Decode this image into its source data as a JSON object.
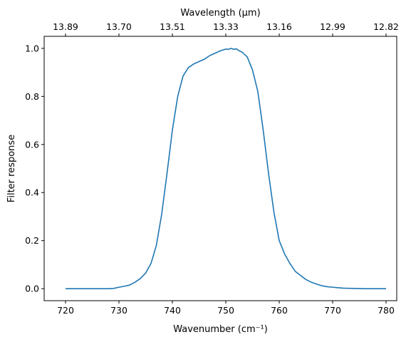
{
  "chart_data": {
    "type": "line",
    "xlabel": "Wavenumber (cm⁻¹)",
    "ylabel": "Filter response",
    "top_xlabel": "Wavelength (μm)",
    "xlim": [
      716,
      782
    ],
    "ylim": [
      -0.05,
      1.05
    ],
    "x_ticks": [
      720,
      730,
      740,
      750,
      760,
      770,
      780
    ],
    "x_tick_labels": [
      "720",
      "730",
      "740",
      "750",
      "760",
      "770",
      "780"
    ],
    "y_ticks": [
      0.0,
      0.2,
      0.4,
      0.6,
      0.8,
      1.0
    ],
    "y_tick_labels": [
      "0.0",
      "0.2",
      "0.4",
      "0.6",
      "0.8",
      "1.0"
    ],
    "top_ticks": [
      720,
      730,
      740,
      750,
      760,
      770,
      780
    ],
    "top_tick_labels": [
      "13.89",
      "13.70",
      "13.51",
      "13.33",
      "13.16",
      "12.99",
      "12.82"
    ],
    "grid": false,
    "line_color": "#1f77b4",
    "series": [
      {
        "x": [
          720,
          722,
          724,
          726,
          728,
          729,
          730,
          731,
          732,
          733,
          734,
          735,
          736,
          737,
          738,
          739,
          740,
          741,
          742,
          743,
          744,
          745,
          746,
          747,
          748,
          749,
          750,
          750.5,
          751,
          751.5,
          752,
          752.5,
          753,
          754,
          755,
          756,
          757,
          758,
          759,
          760,
          761,
          762,
          763,
          764,
          765,
          766,
          767,
          768,
          769,
          770,
          771,
          772,
          774,
          776,
          778,
          780
        ],
        "values": [
          0.0,
          0.0,
          0.0,
          0.0,
          0.0,
          0.001,
          0.006,
          0.01,
          0.015,
          0.027,
          0.042,
          0.065,
          0.105,
          0.18,
          0.31,
          0.48,
          0.66,
          0.8,
          0.885,
          0.92,
          0.935,
          0.945,
          0.955,
          0.97,
          0.98,
          0.99,
          0.997,
          0.996,
          1.0,
          0.996,
          0.998,
          0.99,
          0.985,
          0.965,
          0.91,
          0.82,
          0.66,
          0.48,
          0.32,
          0.2,
          0.145,
          0.105,
          0.072,
          0.055,
          0.038,
          0.027,
          0.019,
          0.012,
          0.008,
          0.006,
          0.004,
          0.002,
          0.001,
          0.0,
          0.0,
          0.0
        ]
      }
    ]
  }
}
